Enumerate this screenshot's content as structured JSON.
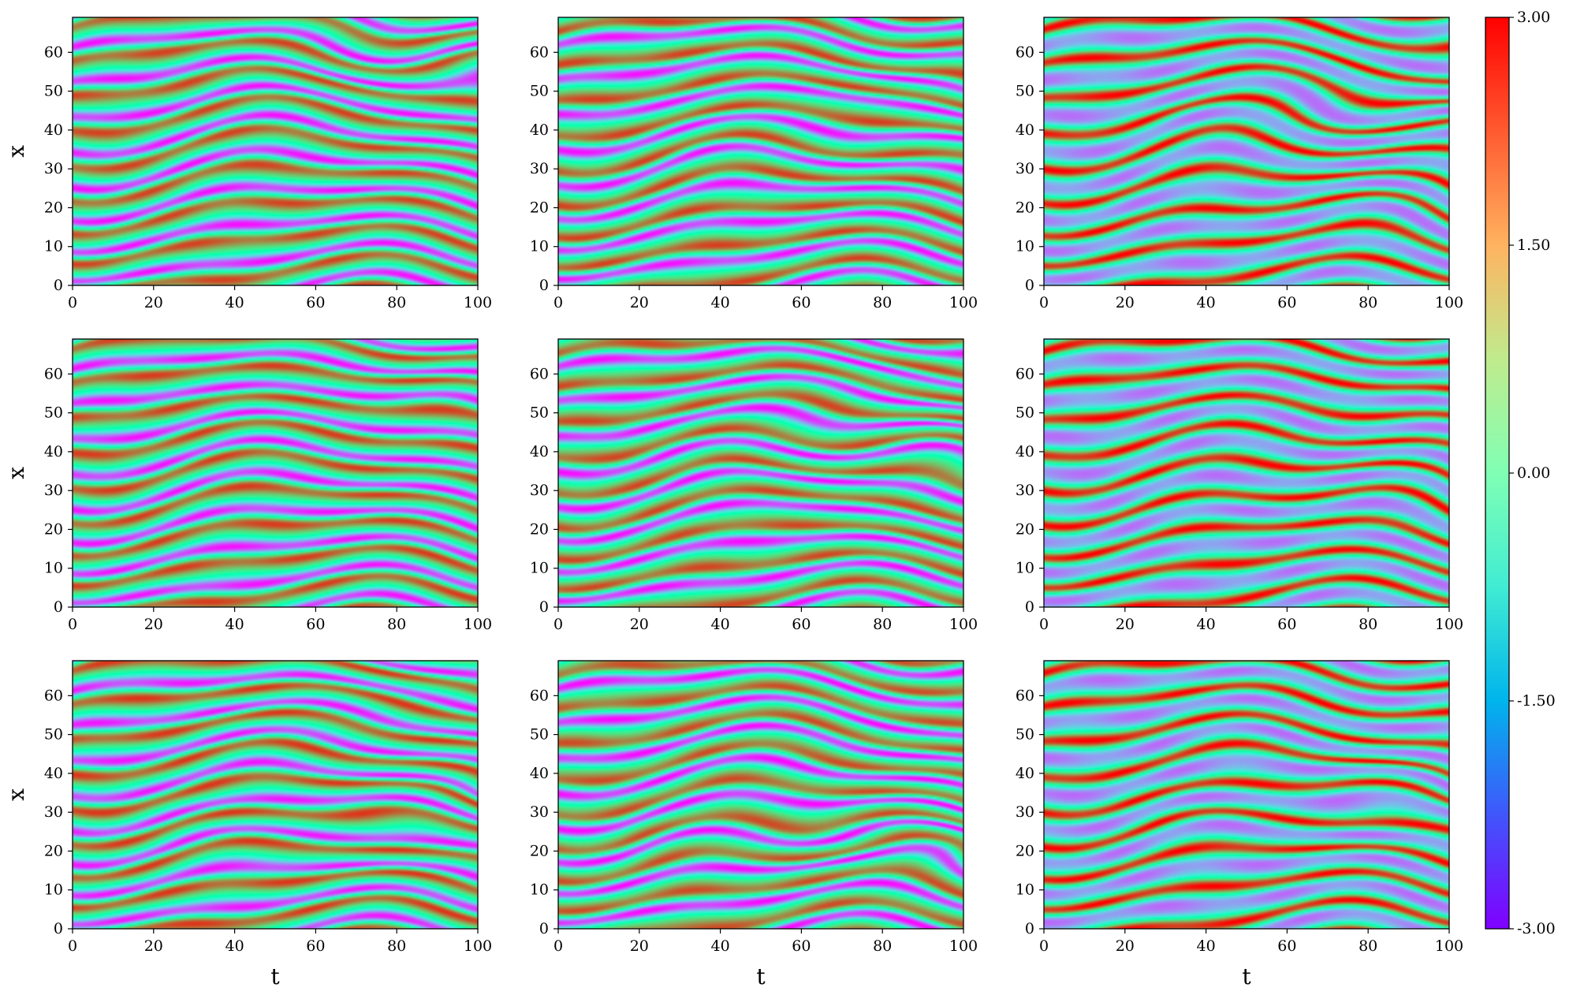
{
  "chart_data": {
    "type": "heatmap",
    "layout": "3x3 grid of space-time heatmaps",
    "colormap": "rainbow",
    "shared_x_label": "t",
    "shared_y_label": "x",
    "xlim": [
      0,
      100
    ],
    "ylim": [
      0,
      69
    ],
    "x_ticks": [
      "0",
      "20",
      "40",
      "60",
      "80",
      "100"
    ],
    "y_ticks": [
      "0",
      "10",
      "20",
      "30",
      "40",
      "50",
      "60"
    ],
    "colorbar": {
      "vmin": -3.0,
      "vmax": 3.0,
      "ticks": [
        "3.00",
        "1.50",
        "0.00",
        "-1.50",
        "-3.00"
      ]
    },
    "panels": [
      {
        "row": 0,
        "col": 0,
        "show_ylabel": true,
        "show_xlabel": false
      },
      {
        "row": 0,
        "col": 1,
        "show_ylabel": false,
        "show_xlabel": false
      },
      {
        "row": 0,
        "col": 2,
        "show_ylabel": false,
        "show_xlabel": false
      },
      {
        "row": 1,
        "col": 0,
        "show_ylabel": true,
        "show_xlabel": false
      },
      {
        "row": 1,
        "col": 1,
        "show_ylabel": false,
        "show_xlabel": false
      },
      {
        "row": 1,
        "col": 2,
        "show_ylabel": false,
        "show_xlabel": false
      },
      {
        "row": 2,
        "col": 0,
        "show_ylabel": true,
        "show_xlabel": true
      },
      {
        "row": 2,
        "col": 1,
        "show_ylabel": false,
        "show_xlabel": true
      },
      {
        "row": 2,
        "col": 2,
        "show_ylabel": false,
        "show_xlabel": true
      }
    ]
  }
}
